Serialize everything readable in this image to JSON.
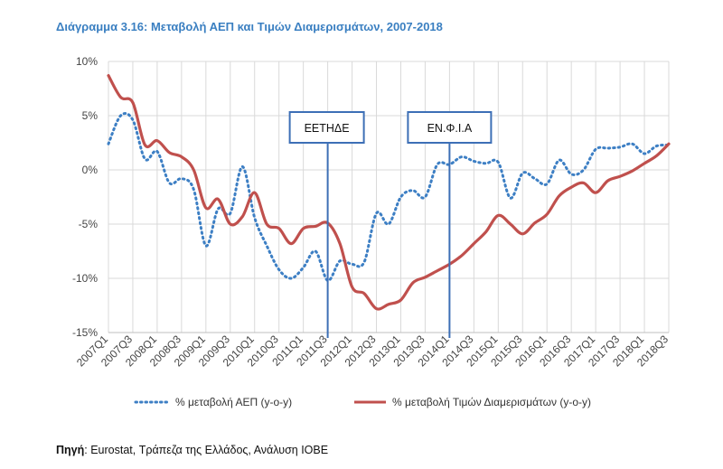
{
  "chart_data": {
    "type": "line",
    "title": "Διάγραμμα 3.16: Μεταβολή ΑΕΠ και Τιμών Διαμερισμάτων, 2007-2018",
    "source_label": "Πηγή",
    "source_text": ": Eurostat, Τράπεζα της Ελλάδος, Ανάλυση ΙΟΒΕ",
    "ylim": [
      -15,
      10
    ],
    "yticks": [
      10,
      5,
      0,
      -5,
      -10,
      -15
    ],
    "ytick_labels": [
      "10%",
      "5%",
      "0%",
      "-5%",
      "-10%",
      "-15%"
    ],
    "x": [
      "2007Q1",
      "2007Q2",
      "2007Q3",
      "2007Q4",
      "2008Q1",
      "2008Q2",
      "2008Q3",
      "2008Q4",
      "2009Q1",
      "2009Q2",
      "2009Q3",
      "2009Q4",
      "2010Q1",
      "2010Q2",
      "2010Q3",
      "2010Q4",
      "2011Q1",
      "2011Q2",
      "2011Q3",
      "2011Q4",
      "2012Q1",
      "2012Q2",
      "2012Q3",
      "2012Q4",
      "2013Q1",
      "2013Q2",
      "2013Q3",
      "2013Q4",
      "2014Q1",
      "2014Q2",
      "2014Q3",
      "2014Q4",
      "2015Q1",
      "2015Q2",
      "2015Q3",
      "2015Q4",
      "2016Q1",
      "2016Q2",
      "2016Q3",
      "2016Q4",
      "2017Q1",
      "2017Q2",
      "2017Q3",
      "2017Q4",
      "2018Q1",
      "2018Q2",
      "2018Q3"
    ],
    "x_tick_labels": [
      "2007Q1",
      "2007Q3",
      "2008Q1",
      "2008Q3",
      "2009Q1",
      "2009Q3",
      "2010Q1",
      "2010Q3",
      "2011Q1",
      "2011Q3",
      "2012Q1",
      "2012Q3",
      "2013Q1",
      "2013Q3",
      "2014Q1",
      "2014Q3",
      "2015Q1",
      "2015Q3",
      "2016Q1",
      "2016Q3",
      "2017Q1",
      "2017Q3",
      "2018Q1",
      "2018Q3"
    ],
    "grid": true,
    "legend_position": "bottom",
    "series": [
      {
        "name": "% μεταβολή ΑΕΠ (y-o-y)",
        "style": "dotted",
        "color": "#3d7fc4",
        "values": [
          2.4,
          5.0,
          4.6,
          1.0,
          1.7,
          -1.2,
          -0.8,
          -1.8,
          -7.0,
          -3.6,
          -4.0,
          0.3,
          -4.4,
          -7.0,
          -9.2,
          -10.0,
          -9.0,
          -7.5,
          -10.2,
          -8.4,
          -8.7,
          -8.5,
          -4.0,
          -5.0,
          -2.5,
          -1.9,
          -2.5,
          0.5,
          0.5,
          1.2,
          0.8,
          0.6,
          0.7,
          -2.6,
          -0.3,
          -0.8,
          -1.3,
          0.9,
          -0.4,
          0.0,
          1.9,
          2.0,
          2.1,
          2.4,
          1.5,
          2.2,
          2.3
        ]
      },
      {
        "name": "% μεταβολή Τιμών Διαμερισμάτων (y-o-y)",
        "style": "solid",
        "color": "#c0504d",
        "values": [
          8.7,
          6.7,
          6.2,
          2.3,
          2.7,
          1.6,
          1.2,
          0.0,
          -3.5,
          -2.7,
          -5.0,
          -4.3,
          -2.1,
          -5.0,
          -5.4,
          -6.8,
          -5.4,
          -5.2,
          -4.9,
          -6.8,
          -10.8,
          -11.4,
          -12.8,
          -12.4,
          -12.0,
          -10.4,
          -9.9,
          -9.3,
          -8.7,
          -7.9,
          -6.8,
          -5.7,
          -4.2,
          -5.0,
          -5.9,
          -4.9,
          -4.1,
          -2.4,
          -1.6,
          -1.2,
          -2.1,
          -1.0,
          -0.6,
          -0.1,
          0.6,
          1.3,
          2.4
        ]
      }
    ],
    "annotations": [
      {
        "label": "ΕΕΤΗΔΕ",
        "x": "2011Q3"
      },
      {
        "label": "ΕΝ.Φ.Ι.Α",
        "x": "2014Q1"
      }
    ],
    "colors": {
      "grid": "#d9d9d9",
      "axis": "#bfbfbf",
      "marker_line": "#3d6fb6",
      "title": "#3a7fc1"
    }
  }
}
